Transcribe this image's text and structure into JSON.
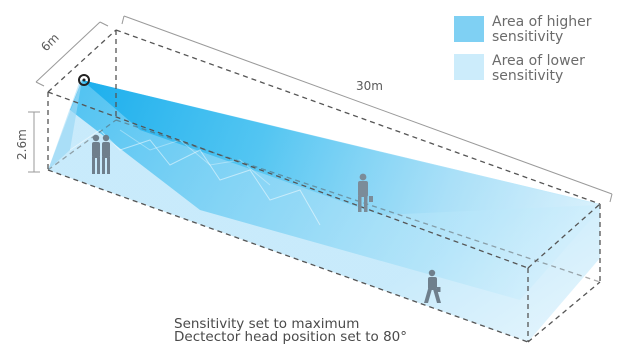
{
  "dimensions": {
    "width_label": "6m",
    "length_label": "30m",
    "height_label": "2.6m"
  },
  "legend": {
    "higher": {
      "line1": "Area of higher",
      "line2": "sensitivity",
      "color": "#7fd0f3"
    },
    "lower": {
      "line1": "Area of lower",
      "line2": "sensitivity",
      "color": "#ccecfb"
    }
  },
  "caption": {
    "line1": "Sensitivity set to maximum",
    "line2": "Dectector head position set to 80°"
  },
  "colors": {
    "beam_strong": "#19b3ee",
    "beam_light": "#d4eefb",
    "room_lines": "#555555",
    "dim_lines": "#9a9a9a",
    "people": "#6f7f8c"
  },
  "icons": [
    "detector-icon",
    "person-icon"
  ]
}
